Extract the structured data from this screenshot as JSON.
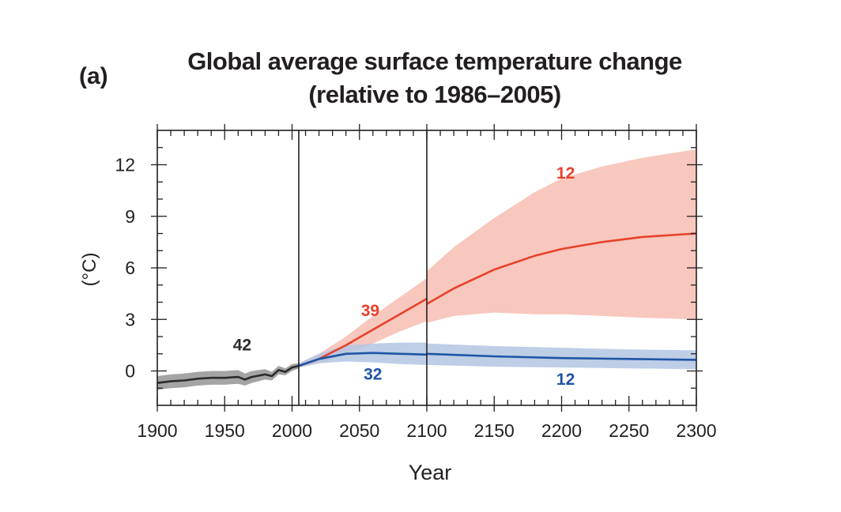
{
  "panel_label": "(a)",
  "title_line1": "Global average surface temperature change",
  "title_line2": "(relative to 1986–2005)",
  "colors": {
    "historical": "#2b2b2b",
    "historical_band": "#9a9a9a",
    "rcp85": "#e8412b",
    "rcp85_band": "#f7bdb3",
    "rcp26": "#1f54a6",
    "rcp26_band": "#b3c6e3",
    "axis": "#231f20"
  },
  "chart_data": {
    "type": "line",
    "title": "Global average surface temperature change (relative to 1986–2005)",
    "xlabel": "Year",
    "ylabel": "(°C)",
    "xlim": [
      1900,
      2300
    ],
    "ylim": [
      -2,
      14
    ],
    "xticks": [
      1900,
      1950,
      2000,
      2050,
      2100,
      2150,
      2200,
      2250,
      2300
    ],
    "yticks": [
      0,
      3,
      6,
      9,
      12
    ],
    "period_dividers": [
      2005,
      2100
    ],
    "grid": false,
    "series": [
      {
        "key": "historical",
        "x": [
          1900,
          1910,
          1920,
          1930,
          1940,
          1950,
          1960,
          1965,
          1970,
          1980,
          1985,
          1990,
          1995,
          2000,
          2005
        ],
        "y": [
          -0.7,
          -0.6,
          -0.55,
          -0.45,
          -0.4,
          -0.4,
          -0.35,
          -0.5,
          -0.35,
          -0.2,
          -0.3,
          0.05,
          -0.05,
          0.2,
          0.3
        ],
        "low": [
          -1.1,
          -1.0,
          -0.95,
          -0.85,
          -0.8,
          -0.8,
          -0.75,
          -0.85,
          -0.7,
          -0.5,
          -0.55,
          -0.2,
          -0.25,
          0.0,
          0.15
        ],
        "high": [
          -0.3,
          -0.2,
          -0.15,
          -0.05,
          0.0,
          0.0,
          0.05,
          -0.15,
          0.0,
          0.1,
          -0.05,
          0.3,
          0.15,
          0.4,
          0.45
        ]
      },
      {
        "key": "rcp85",
        "x": [
          2005,
          2020,
          2040,
          2060,
          2080,
          2100,
          2100,
          2120,
          2150,
          2180,
          2200,
          2230,
          2260,
          2300
        ],
        "y": [
          0.3,
          0.7,
          1.5,
          2.4,
          3.3,
          4.2,
          3.9,
          4.8,
          5.9,
          6.7,
          7.1,
          7.5,
          7.8,
          8.0
        ],
        "low": [
          0.2,
          0.45,
          1.0,
          1.6,
          2.3,
          2.9,
          2.8,
          3.2,
          3.4,
          3.3,
          3.3,
          3.2,
          3.1,
          3.0
        ],
        "high": [
          0.45,
          1.0,
          2.0,
          3.2,
          4.3,
          5.4,
          5.8,
          7.2,
          8.9,
          10.4,
          11.2,
          11.9,
          12.4,
          12.9
        ]
      },
      {
        "key": "rcp26",
        "x": [
          2005,
          2020,
          2040,
          2060,
          2080,
          2100,
          2100,
          2150,
          2200,
          2250,
          2300
        ],
        "y": [
          0.3,
          0.7,
          1.0,
          1.05,
          1.0,
          0.95,
          1.0,
          0.85,
          0.75,
          0.7,
          0.65
        ],
        "low": [
          0.2,
          0.45,
          0.55,
          0.5,
          0.4,
          0.35,
          0.35,
          0.25,
          0.2,
          0.15,
          0.1
        ],
        "high": [
          0.45,
          1.0,
          1.5,
          1.6,
          1.65,
          1.65,
          1.6,
          1.45,
          1.35,
          1.25,
          1.2
        ]
      }
    ],
    "annotations": [
      {
        "text": "42",
        "x": 1963,
        "y": 1.2,
        "color_key": "historical"
      },
      {
        "text": "39",
        "x": 2058,
        "y": 3.2,
        "color_key": "rcp85"
      },
      {
        "text": "32",
        "x": 2060,
        "y": -0.5,
        "color_key": "rcp26"
      },
      {
        "text": "12",
        "x": 2203,
        "y": 11.2,
        "color_key": "rcp85"
      },
      {
        "text": "12",
        "x": 2203,
        "y": -0.8,
        "color_key": "rcp26"
      }
    ]
  }
}
